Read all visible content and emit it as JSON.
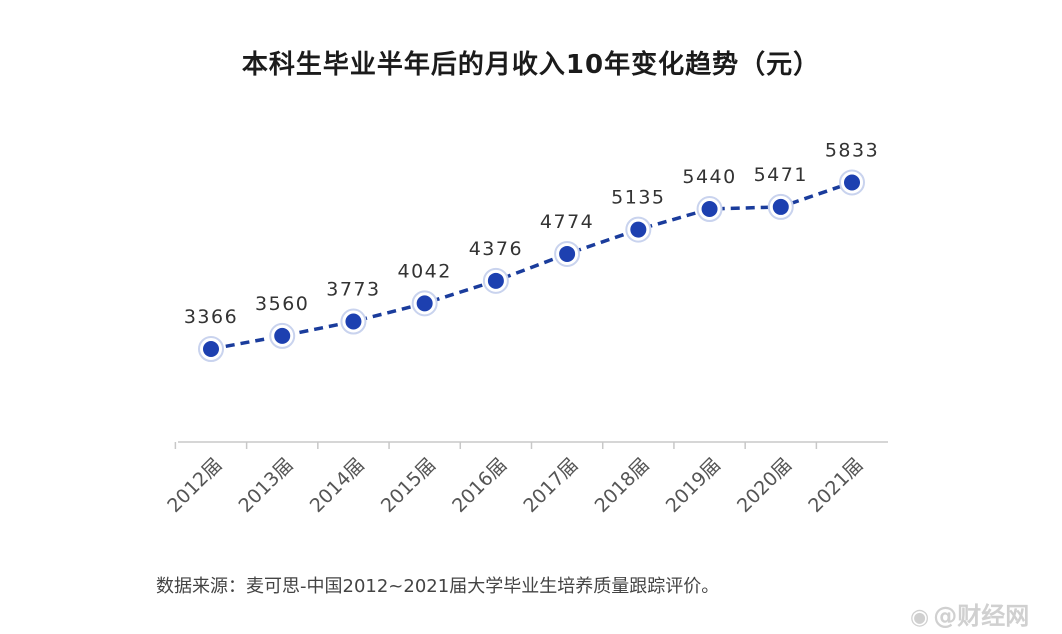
{
  "colors": {
    "line": "#1a3c9c",
    "point": "#1d40b0",
    "point_ring": "#c9d3ee",
    "axis": "#c8c8c8",
    "label": "#333333",
    "tick": "#555555"
  },
  "title": "本科生毕业半年后的月收入10年变化趋势（元）",
  "source_note": "数据来源：麦可思-中国2012~2021届大学毕业生培养质量跟踪评价。",
  "watermark": {
    "icon": "weibo-icon",
    "text": "@财经网"
  },
  "chart_data": {
    "type": "line",
    "title": "本科生毕业半年后的月收入10年变化趋势（元）",
    "xlabel": "",
    "ylabel": "",
    "categories": [
      "2012届",
      "2013届",
      "2014届",
      "2015届",
      "2016届",
      "2017届",
      "2018届",
      "2019届",
      "2020届",
      "2021届"
    ],
    "series": [
      {
        "values": [
          3366,
          3560,
          3773,
          4042,
          4376,
          4774,
          5135,
          5440,
          5471,
          5833
        ]
      }
    ],
    "data_labels": [
      "3366",
      "3560",
      "3773",
      "4042",
      "4376",
      "4774",
      "5135",
      "5440",
      "5471",
      "5833"
    ],
    "line_style": "dashed",
    "grid": false,
    "legend": "none"
  }
}
